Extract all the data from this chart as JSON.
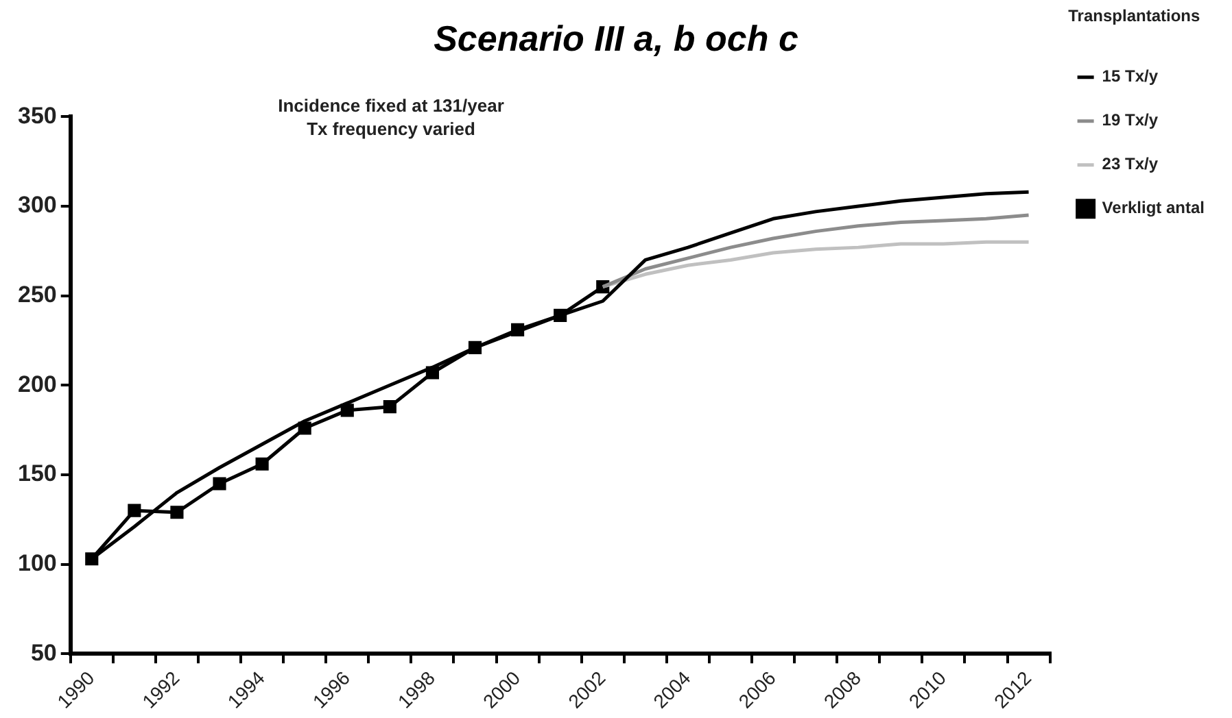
{
  "chart_data": {
    "type": "line",
    "title": "Scenario III a, b och c",
    "legend_title": "Transplantations",
    "legend": "right",
    "grid": false,
    "annotations": [
      "Incidence fixed at 131/year",
      "Tx frequency varied"
    ],
    "categories": [
      "1990",
      null,
      "1992",
      null,
      "1994",
      null,
      "1996",
      null,
      "1998",
      null,
      "2000",
      null,
      "2002",
      null,
      "2004",
      null,
      "2006",
      null,
      "2008",
      null,
      "2010",
      null,
      "2012"
    ],
    "ylim": [
      50,
      350
    ],
    "yticks": [
      50,
      100,
      150,
      200,
      250,
      300,
      350
    ],
    "series": [
      {
        "name": "15 Tx/y",
        "color": "#000000",
        "marker": "none",
        "values": [
          103,
          121,
          140,
          154,
          167,
          180,
          190,
          200,
          210,
          221,
          230,
          239,
          247,
          270,
          277,
          285,
          293,
          297,
          300,
          303,
          305,
          307,
          308
        ]
      },
      {
        "name": "19 Tx/y",
        "color": "#8c8c8c",
        "marker": "none",
        "values": [
          null,
          null,
          null,
          null,
          null,
          null,
          null,
          null,
          null,
          null,
          null,
          null,
          255,
          265,
          271,
          277,
          282,
          286,
          289,
          291,
          292,
          293,
          295
        ]
      },
      {
        "name": "23 Tx/y",
        "color": "#c0c0c0",
        "marker": "none",
        "values": [
          null,
          null,
          null,
          null,
          null,
          null,
          null,
          null,
          null,
          null,
          null,
          null,
          255,
          262,
          267,
          270,
          274,
          276,
          277,
          279,
          279,
          280,
          280
        ]
      },
      {
        "name": "Verkligt antal",
        "color": "#000000",
        "marker": "square",
        "values": [
          103,
          130,
          129,
          145,
          156,
          176,
          186,
          188,
          207,
          221,
          231,
          239,
          255,
          null,
          null,
          null,
          null,
          null,
          null,
          null,
          null,
          null,
          null
        ]
      }
    ]
  }
}
